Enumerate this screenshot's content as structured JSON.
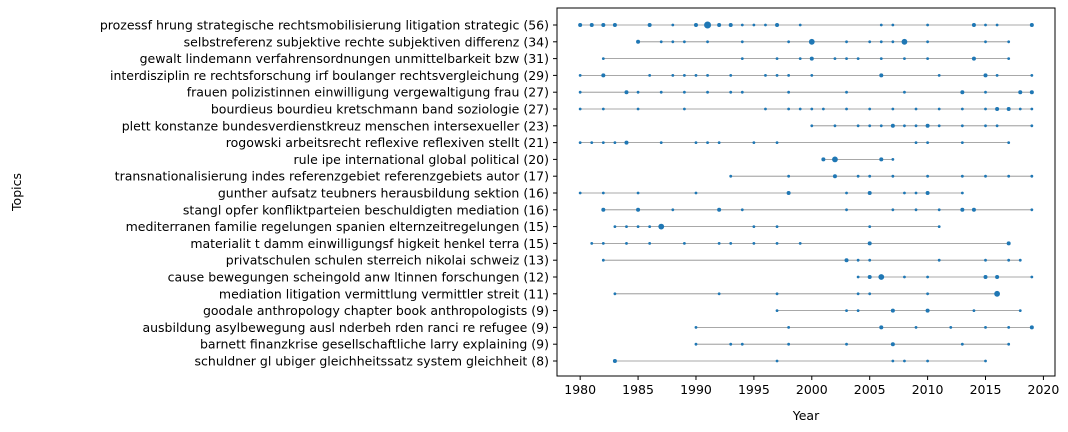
{
  "chart_data": {
    "type": "scatter",
    "xlabel": "Year",
    "ylabel": "Topics",
    "xlim": [
      1978,
      2021
    ],
    "xticks": [
      1980,
      1985,
      1990,
      1995,
      2000,
      2005,
      2010,
      2015,
      2020
    ],
    "grid": false,
    "dot_color": "#1f77b4",
    "line_color": "#8c8c8c",
    "topics": [
      {
        "label": "prozessf hrung  strategische  rechtsmobilisierung  litigation  strategic (56)",
        "points": [
          [
            1980,
            2
          ],
          [
            1981,
            2
          ],
          [
            1982,
            2
          ],
          [
            1983,
            2
          ],
          [
            1986,
            2
          ],
          [
            1988,
            1
          ],
          [
            1990,
            2
          ],
          [
            1991,
            4
          ],
          [
            1992,
            2
          ],
          [
            1993,
            2
          ],
          [
            1994,
            1
          ],
          [
            1995,
            1
          ],
          [
            1996,
            1
          ],
          [
            1997,
            2
          ],
          [
            1999,
            1
          ],
          [
            2006,
            1
          ],
          [
            2007,
            1
          ],
          [
            2010,
            1
          ],
          [
            2014,
            2
          ],
          [
            2015,
            1
          ],
          [
            2016,
            1
          ],
          [
            2019,
            2
          ]
        ]
      },
      {
        "label": "selbstreferenz  subjektive  rechte  subjektiven  differenz (34)",
        "points": [
          [
            1985,
            2
          ],
          [
            1987,
            1
          ],
          [
            1988,
            1
          ],
          [
            1989,
            1
          ],
          [
            1991,
            1
          ],
          [
            1994,
            1
          ],
          [
            1998,
            1
          ],
          [
            2000,
            3
          ],
          [
            2003,
            1
          ],
          [
            2005,
            1
          ],
          [
            2006,
            1
          ],
          [
            2007,
            1
          ],
          [
            2008,
            3
          ],
          [
            2010,
            1
          ],
          [
            2015,
            1
          ],
          [
            2017,
            1
          ]
        ]
      },
      {
        "label": "gewalt  lindemann  verfahrensordnungen  unmittelbarkeit  bzw (31)",
        "points": [
          [
            1982,
            1
          ],
          [
            1994,
            1
          ],
          [
            1997,
            1
          ],
          [
            1999,
            1
          ],
          [
            2000,
            2
          ],
          [
            2002,
            1
          ],
          [
            2003,
            1
          ],
          [
            2004,
            1
          ],
          [
            2006,
            1
          ],
          [
            2008,
            1
          ],
          [
            2010,
            1
          ],
          [
            2014,
            2
          ],
          [
            2017,
            1
          ]
        ]
      },
      {
        "label": "interdisziplin re  rechtsforschung  irf  boulanger  rechtsvergleichung (29)",
        "points": [
          [
            1980,
            1
          ],
          [
            1982,
            2
          ],
          [
            1986,
            1
          ],
          [
            1988,
            1
          ],
          [
            1989,
            1
          ],
          [
            1990,
            1
          ],
          [
            1991,
            1
          ],
          [
            1993,
            1
          ],
          [
            1996,
            1
          ],
          [
            1997,
            1
          ],
          [
            1998,
            1
          ],
          [
            2000,
            1
          ],
          [
            2006,
            2
          ],
          [
            2011,
            1
          ],
          [
            2015,
            2
          ],
          [
            2016,
            1
          ],
          [
            2019,
            1
          ]
        ]
      },
      {
        "label": "frauen  polizistinnen  einwilligung  vergewaltigung  frau (27)",
        "points": [
          [
            1980,
            1
          ],
          [
            1984,
            2
          ],
          [
            1985,
            1
          ],
          [
            1987,
            1
          ],
          [
            1989,
            1
          ],
          [
            1991,
            1
          ],
          [
            1993,
            1
          ],
          [
            1994,
            1
          ],
          [
            1998,
            1
          ],
          [
            2003,
            1
          ],
          [
            2008,
            1
          ],
          [
            2013,
            2
          ],
          [
            2015,
            1
          ],
          [
            2018,
            2
          ],
          [
            2019,
            2
          ]
        ]
      },
      {
        "label": "bourdieus  bourdieu  kretschmann  band  soziologie (27)",
        "points": [
          [
            1980,
            1
          ],
          [
            1982,
            1
          ],
          [
            1985,
            1
          ],
          [
            1989,
            1
          ],
          [
            1996,
            1
          ],
          [
            1998,
            1
          ],
          [
            1999,
            1
          ],
          [
            2000,
            1
          ],
          [
            2001,
            1
          ],
          [
            2003,
            1
          ],
          [
            2005,
            1
          ],
          [
            2007,
            1
          ],
          [
            2009,
            1
          ],
          [
            2011,
            1
          ],
          [
            2013,
            1
          ],
          [
            2015,
            1
          ],
          [
            2016,
            2
          ],
          [
            2017,
            2
          ],
          [
            2018,
            1
          ],
          [
            2019,
            1
          ]
        ]
      },
      {
        "label": "plett  konstanze  bundesverdienstkreuz  menschen  intersexueller (23)",
        "points": [
          [
            2000,
            1
          ],
          [
            2002,
            1
          ],
          [
            2004,
            1
          ],
          [
            2005,
            1
          ],
          [
            2006,
            1
          ],
          [
            2007,
            2
          ],
          [
            2008,
            1
          ],
          [
            2009,
            1
          ],
          [
            2010,
            2
          ],
          [
            2011,
            1
          ],
          [
            2013,
            1
          ],
          [
            2015,
            1
          ],
          [
            2016,
            1
          ],
          [
            2019,
            1
          ]
        ]
      },
      {
        "label": "rogowski  arbeitsrecht  reflexive  reflexiven  stellt (21)",
        "points": [
          [
            1980,
            1
          ],
          [
            1981,
            1
          ],
          [
            1982,
            1
          ],
          [
            1983,
            1
          ],
          [
            1984,
            2
          ],
          [
            1987,
            1
          ],
          [
            1990,
            1
          ],
          [
            1991,
            1
          ],
          [
            1992,
            1
          ],
          [
            1995,
            1
          ],
          [
            1997,
            1
          ],
          [
            2009,
            1
          ],
          [
            2010,
            1
          ],
          [
            2013,
            1
          ],
          [
            2017,
            1
          ]
        ]
      },
      {
        "label": "rule  ipe  international  global  political (20)",
        "points": [
          [
            2001,
            2
          ],
          [
            2002,
            3
          ],
          [
            2006,
            2
          ],
          [
            2007,
            1
          ]
        ]
      },
      {
        "label": "transnationalisierung  indes  referenzgebiet  referenzgebiets  autor (17)",
        "points": [
          [
            1993,
            1
          ],
          [
            1998,
            1
          ],
          [
            2002,
            2
          ],
          [
            2004,
            1
          ],
          [
            2005,
            1
          ],
          [
            2007,
            1
          ],
          [
            2010,
            1
          ],
          [
            2013,
            1
          ],
          [
            2015,
            1
          ],
          [
            2017,
            1
          ],
          [
            2019,
            1
          ]
        ]
      },
      {
        "label": "gunther  aufsatz  teubners  herausbildung  sektion (16)",
        "points": [
          [
            1980,
            1
          ],
          [
            1982,
            1
          ],
          [
            1985,
            1
          ],
          [
            1990,
            1
          ],
          [
            1998,
            2
          ],
          [
            2003,
            1
          ],
          [
            2005,
            2
          ],
          [
            2008,
            1
          ],
          [
            2009,
            1
          ],
          [
            2010,
            2
          ],
          [
            2013,
            1
          ]
        ]
      },
      {
        "label": "stangl  opfer  konfliktparteien  beschuldigten  mediation (16)",
        "points": [
          [
            1982,
            2
          ],
          [
            1985,
            2
          ],
          [
            1988,
            1
          ],
          [
            1992,
            2
          ],
          [
            1994,
            1
          ],
          [
            2003,
            1
          ],
          [
            2007,
            1
          ],
          [
            2009,
            1
          ],
          [
            2011,
            1
          ],
          [
            2013,
            2
          ],
          [
            2014,
            2
          ],
          [
            2019,
            1
          ]
        ]
      },
      {
        "label": "mediterranen  familie  regelungen  spanien  elternzeitregelungen (15)",
        "points": [
          [
            1983,
            1
          ],
          [
            1984,
            1
          ],
          [
            1985,
            1
          ],
          [
            1986,
            1
          ],
          [
            1987,
            3
          ],
          [
            1995,
            1
          ],
          [
            1997,
            1
          ],
          [
            2005,
            1
          ],
          [
            2011,
            1
          ]
        ]
      },
      {
        "label": "materialit t  damm  einwilligungsf higkeit  henkel  terra (15)",
        "points": [
          [
            1981,
            1
          ],
          [
            1982,
            1
          ],
          [
            1984,
            1
          ],
          [
            1986,
            1
          ],
          [
            1989,
            1
          ],
          [
            1992,
            1
          ],
          [
            1993,
            1
          ],
          [
            1995,
            1
          ],
          [
            1997,
            1
          ],
          [
            1999,
            1
          ],
          [
            2005,
            2
          ],
          [
            2017,
            2
          ]
        ]
      },
      {
        "label": "privatschulen  schulen   sterreich  nikolai  schweiz (13)",
        "points": [
          [
            1982,
            1
          ],
          [
            2003,
            2
          ],
          [
            2004,
            1
          ],
          [
            2005,
            1
          ],
          [
            2011,
            1
          ],
          [
            2015,
            1
          ],
          [
            2017,
            1
          ],
          [
            2018,
            1
          ]
        ]
      },
      {
        "label": "cause  bewegungen  scheingold  anw ltinnen  forschungen (12)",
        "points": [
          [
            2004,
            1
          ],
          [
            2005,
            2
          ],
          [
            2006,
            3
          ],
          [
            2008,
            1
          ],
          [
            2010,
            1
          ],
          [
            2015,
            2
          ],
          [
            2016,
            2
          ],
          [
            2019,
            1
          ]
        ]
      },
      {
        "label": "mediation  litigation  vermittlung  vermittler  streit (11)",
        "points": [
          [
            1983,
            1
          ],
          [
            1992,
            1
          ],
          [
            1997,
            1
          ],
          [
            2004,
            1
          ],
          [
            2005,
            1
          ],
          [
            2010,
            1
          ],
          [
            2016,
            3
          ]
        ]
      },
      {
        "label": "goodale  anthropology  chapter  book  anthropologists (9)",
        "points": [
          [
            1997,
            1
          ],
          [
            2003,
            1
          ],
          [
            2004,
            1
          ],
          [
            2007,
            2
          ],
          [
            2010,
            2
          ],
          [
            2014,
            1
          ],
          [
            2018,
            1
          ]
        ]
      },
      {
        "label": "ausbildung  asylbewegung  ausl nderbeh rden  ranci re  refugee (9)",
        "points": [
          [
            1990,
            1
          ],
          [
            1998,
            1
          ],
          [
            2006,
            2
          ],
          [
            2009,
            1
          ],
          [
            2012,
            1
          ],
          [
            2015,
            1
          ],
          [
            2017,
            1
          ],
          [
            2019,
            2
          ]
        ]
      },
      {
        "label": "barnett  finanzkrise  gesellschaftliche  larry  explaining (9)",
        "points": [
          [
            1990,
            1
          ],
          [
            1993,
            1
          ],
          [
            1994,
            1
          ],
          [
            1998,
            1
          ],
          [
            2003,
            1
          ],
          [
            2007,
            2
          ],
          [
            2013,
            1
          ],
          [
            2017,
            1
          ]
        ]
      },
      {
        "label": "schuldner  gl ubiger  gleichheitssatz  system  gleichheit (8)",
        "points": [
          [
            1983,
            2
          ],
          [
            1997,
            1
          ],
          [
            2007,
            1
          ],
          [
            2008,
            1
          ],
          [
            2010,
            1
          ],
          [
            2015,
            1
          ]
        ]
      }
    ]
  }
}
